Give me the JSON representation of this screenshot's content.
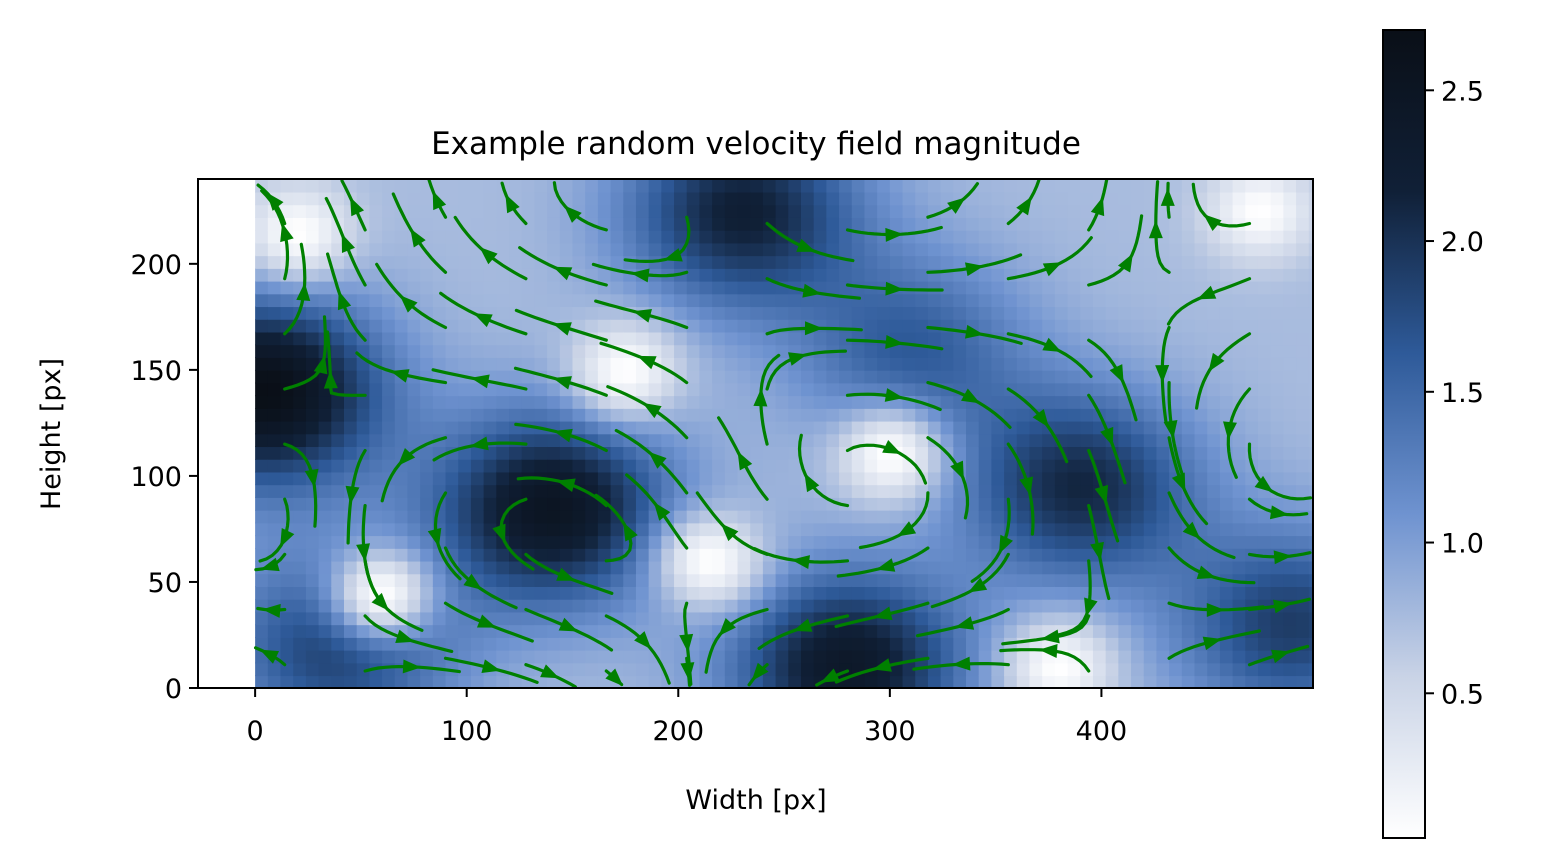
{
  "chart_data": {
    "type": "heatmap",
    "title": "Example random velocity field magnitude",
    "xlabel": "Width [px]",
    "ylabel": "Height [px]",
    "xlim": [
      -27,
      500
    ],
    "ylim": [
      0,
      240
    ],
    "xticks": [
      0,
      100,
      200,
      300,
      400
    ],
    "xtick_labels": [
      "0",
      "100",
      "200",
      "300",
      "400"
    ],
    "yticks": [
      0,
      50,
      100,
      150,
      200
    ],
    "ytick_labels": [
      "0",
      "50",
      "100",
      "150",
      "200"
    ],
    "grid": false,
    "overlay": "streamlines",
    "streamline_color": "#008000",
    "colormap": [
      "#ffffff",
      "#c9d3e6",
      "#6f93d0",
      "#2e5a99",
      "#102037",
      "#0a0f17"
    ],
    "colorbar": {
      "range": [
        0.02,
        2.7
      ],
      "ticks": [
        0.5,
        1.0,
        1.5,
        2.0,
        2.5
      ],
      "tick_labels": [
        "0.5",
        "1.0",
        "1.5",
        "2.0",
        "2.5"
      ]
    },
    "magnitude_peaks": [
      {
        "x": 5,
        "y": 140,
        "value": 2.7
      },
      {
        "x": 140,
        "y": 85,
        "value": 2.5
      },
      {
        "x": 280,
        "y": 10,
        "value": 2.4
      },
      {
        "x": 230,
        "y": 225,
        "value": 2.2
      },
      {
        "x": 390,
        "y": 95,
        "value": 2.1
      },
      {
        "x": 490,
        "y": 30,
        "value": 1.9
      },
      {
        "x": 40,
        "y": 20,
        "value": 1.9
      },
      {
        "x": 310,
        "y": 160,
        "value": 1.6
      }
    ],
    "magnitude_lows": [
      {
        "x": 20,
        "y": 215
      },
      {
        "x": 175,
        "y": 150
      },
      {
        "x": 215,
        "y": 60
      },
      {
        "x": 300,
        "y": 110
      },
      {
        "x": 380,
        "y": 10
      },
      {
        "x": 475,
        "y": 225
      },
      {
        "x": 60,
        "y": 45
      }
    ]
  }
}
